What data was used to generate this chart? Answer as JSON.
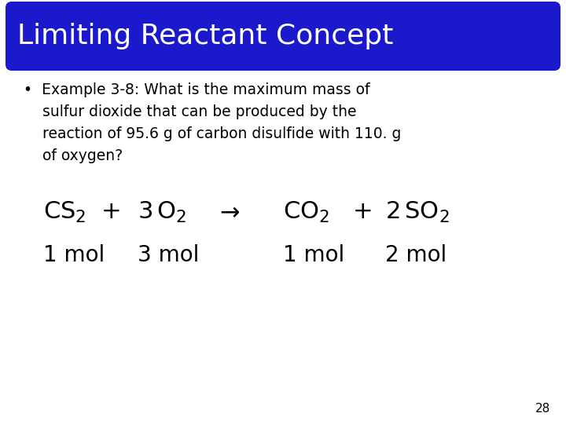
{
  "title": "Limiting Reactant Concept",
  "title_color": "#ffffff",
  "title_bg_color": "#1a1acc",
  "bg_color": "#ffffff",
  "page_number": "28",
  "bullet_lines": [
    "•  Example 3-8: What is the maximum mass of",
    "    sulfur dioxide that can be produced by the",
    "    reaction of 95.6 g of carbon disulfide with 110. g",
    "    of oxygen?"
  ],
  "title_fontsize": 26,
  "bullet_fontsize": 13.5,
  "eq_fontsize": 22,
  "mol_fontsize": 20,
  "page_fontsize": 11
}
